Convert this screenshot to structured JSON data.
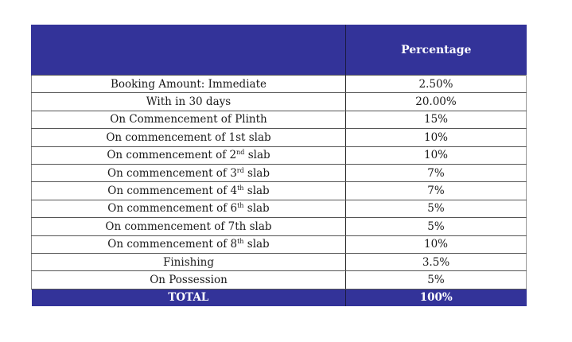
{
  "table": {
    "header": {
      "stage": "",
      "percentage": "Percentage"
    },
    "rows": [
      {
        "stage": "Booking Amount: Immediate",
        "stage_base": "Booking Amount: Immediate",
        "stage_sup": "",
        "stage_tail": "",
        "percentage": "2.50%"
      },
      {
        "stage": "With in 30 days",
        "stage_base": "With in 30 days",
        "stage_sup": "",
        "stage_tail": "",
        "percentage": "20.00%"
      },
      {
        "stage": "On Commencement of Plinth",
        "stage_base": "On Commencement of Plinth",
        "stage_sup": "",
        "stage_tail": "",
        "percentage": "15%"
      },
      {
        "stage": "On commencement of 1st slab",
        "stage_base": "On commencement of 1st slab",
        "stage_sup": "",
        "stage_tail": "",
        "percentage": "10%"
      },
      {
        "stage": "On commencement of 2nd slab",
        "stage_base": "On commencement of 2",
        "stage_sup": "nd",
        "stage_tail": " slab",
        "percentage": "10%"
      },
      {
        "stage": "On commencement of 3rd slab",
        "stage_base": "On commencement of 3",
        "stage_sup": "rd",
        "stage_tail": " slab",
        "percentage": "7%"
      },
      {
        "stage": "On commencement of 4th slab",
        "stage_base": "On commencement of 4",
        "stage_sup": "th",
        "stage_tail": " slab",
        "percentage": "7%"
      },
      {
        "stage": "On commencement of 6th slab",
        "stage_base": "On commencement of 6",
        "stage_sup": "th",
        "stage_tail": " slab",
        "percentage": "5%"
      },
      {
        "stage": "On commencement of 7th slab",
        "stage_base": "On commencement of 7th slab",
        "stage_sup": "",
        "stage_tail": "",
        "percentage": "5%"
      },
      {
        "stage": "On commencement of 8th slab",
        "stage_base": "On commencement of 8",
        "stage_sup": "th",
        "stage_tail": " slab",
        "percentage": "10%"
      },
      {
        "stage": "Finishing",
        "stage_base": "Finishing",
        "stage_sup": "",
        "stage_tail": "",
        "percentage": "3.5%"
      },
      {
        "stage": "On Possession",
        "stage_base": "On Possession",
        "stage_sup": "",
        "stage_tail": "",
        "percentage": "5%"
      }
    ],
    "total": {
      "stage": "TOTAL",
      "percentage": "100%"
    }
  },
  "colors": {
    "header_bg": "#333399",
    "header_text": "#ffffff",
    "row_border": "#555555"
  }
}
